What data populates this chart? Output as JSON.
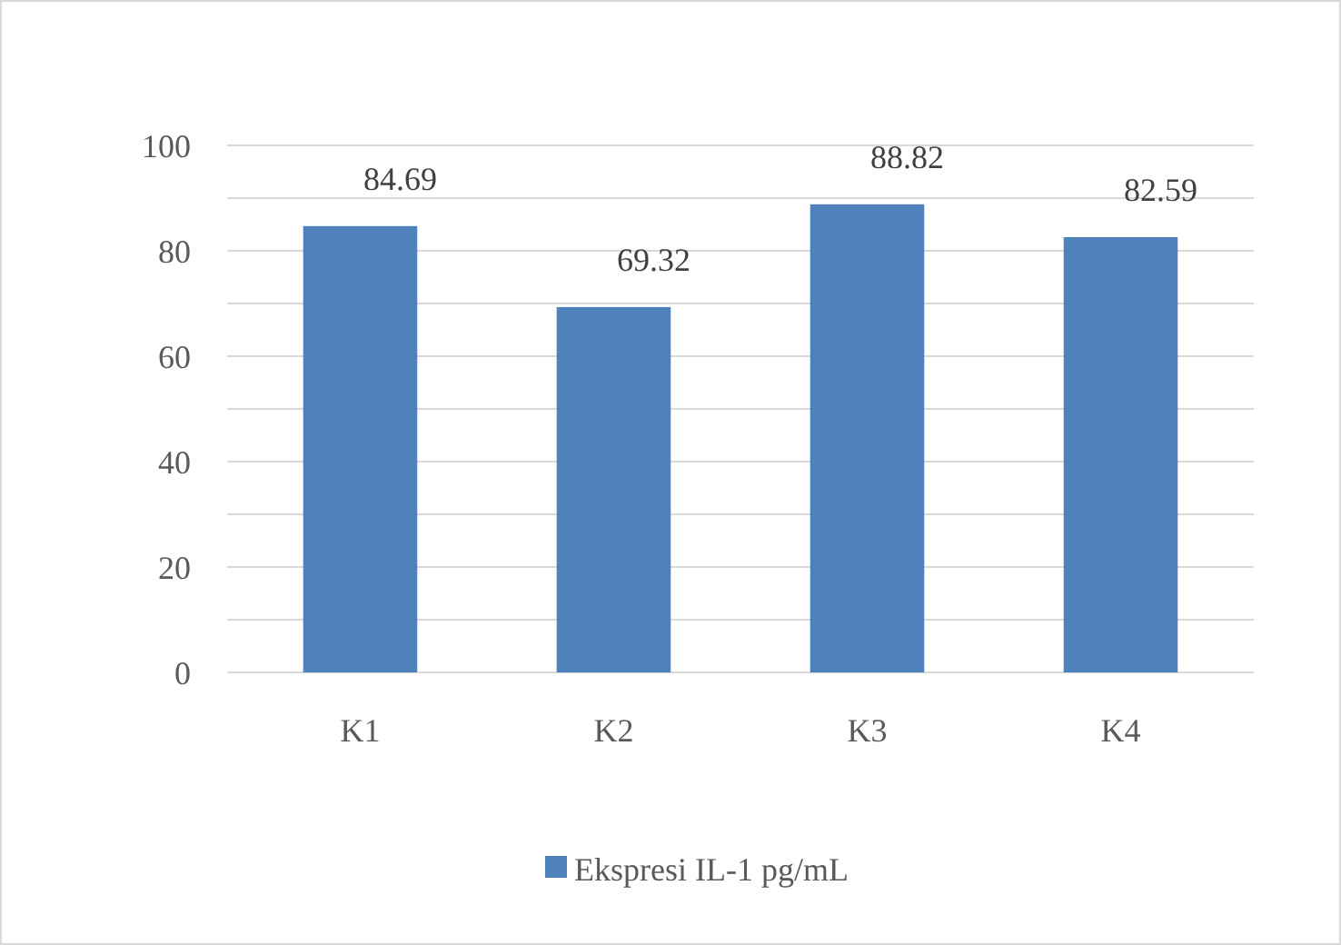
{
  "chart_data": {
    "type": "bar",
    "categories": [
      "K1",
      "K2",
      "K3",
      "K4"
    ],
    "series": [
      {
        "name": "Ekspresi IL-1 pg/mL",
        "color": "#4f81bd",
        "values": [
          84.69,
          69.32,
          88.82,
          82.59
        ]
      }
    ],
    "ylim": [
      0,
      100
    ],
    "yticks": [
      0,
      {
        "value": 10,
        "label": null
      },
      20,
      {
        "value": 30,
        "label": null
      },
      40,
      {
        "value": 50,
        "label": null
      },
      60,
      {
        "value": 70,
        "label": null
      },
      80,
      {
        "value": 90,
        "label": null
      },
      100
    ],
    "grid": "y",
    "data_labels": true,
    "legend": "bottom"
  }
}
